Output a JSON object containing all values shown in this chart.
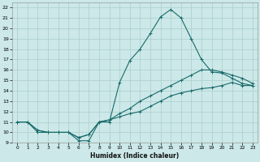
{
  "xlabel": "Humidex (Indice chaleur)",
  "xlim": [
    -0.5,
    23.5
  ],
  "ylim": [
    9,
    22.5
  ],
  "xticks": [
    0,
    1,
    2,
    3,
    4,
    5,
    6,
    7,
    8,
    9,
    10,
    11,
    12,
    13,
    14,
    15,
    16,
    17,
    18,
    19,
    20,
    21,
    22,
    23
  ],
  "yticks": [
    9,
    10,
    11,
    12,
    13,
    14,
    15,
    16,
    17,
    18,
    19,
    20,
    21,
    22
  ],
  "bg_color": "#cce8e8",
  "grid_color": "#aacece",
  "line_color": "#1a6b6b",
  "line1_x": [
    0,
    1,
    2,
    3,
    4,
    5,
    6,
    7,
    8,
    9,
    10,
    11,
    12,
    13,
    14,
    15,
    16,
    17,
    18,
    19,
    20,
    21,
    22,
    23
  ],
  "line1_y": [
    11,
    11,
    10,
    10,
    10,
    10,
    9.2,
    9.2,
    11,
    11,
    14.8,
    16.9,
    18.0,
    19.5,
    21.1,
    21.8,
    21.0,
    19.0,
    17.0,
    15.8,
    15.7,
    15.2,
    14.7,
    14.5
  ],
  "line2_x": [
    0,
    1,
    2,
    3,
    4,
    5,
    6,
    7,
    8,
    9,
    10,
    11,
    12,
    13,
    14,
    15,
    16,
    17,
    18,
    19,
    20,
    21,
    22,
    23
  ],
  "line2_y": [
    11,
    11,
    10.2,
    10,
    10,
    10,
    9.5,
    9.8,
    11,
    11.2,
    11.8,
    12.3,
    13.0,
    13.5,
    14.0,
    14.5,
    15.0,
    15.5,
    16.0,
    16.0,
    15.8,
    15.5,
    15.2,
    14.7
  ],
  "line3_x": [
    0,
    1,
    2,
    3,
    4,
    5,
    6,
    7,
    8,
    9,
    10,
    11,
    12,
    13,
    14,
    15,
    16,
    17,
    18,
    19,
    20,
    21,
    22,
    23
  ],
  "line3_y": [
    11,
    11,
    10.2,
    10,
    10,
    10,
    9.5,
    9.8,
    11,
    11.2,
    11.5,
    11.8,
    12.0,
    12.5,
    13.0,
    13.5,
    13.8,
    14.0,
    14.2,
    14.3,
    14.5,
    14.8,
    14.5,
    14.5
  ],
  "marker_style": "+",
  "marker_size": 3,
  "line_width": 0.8
}
